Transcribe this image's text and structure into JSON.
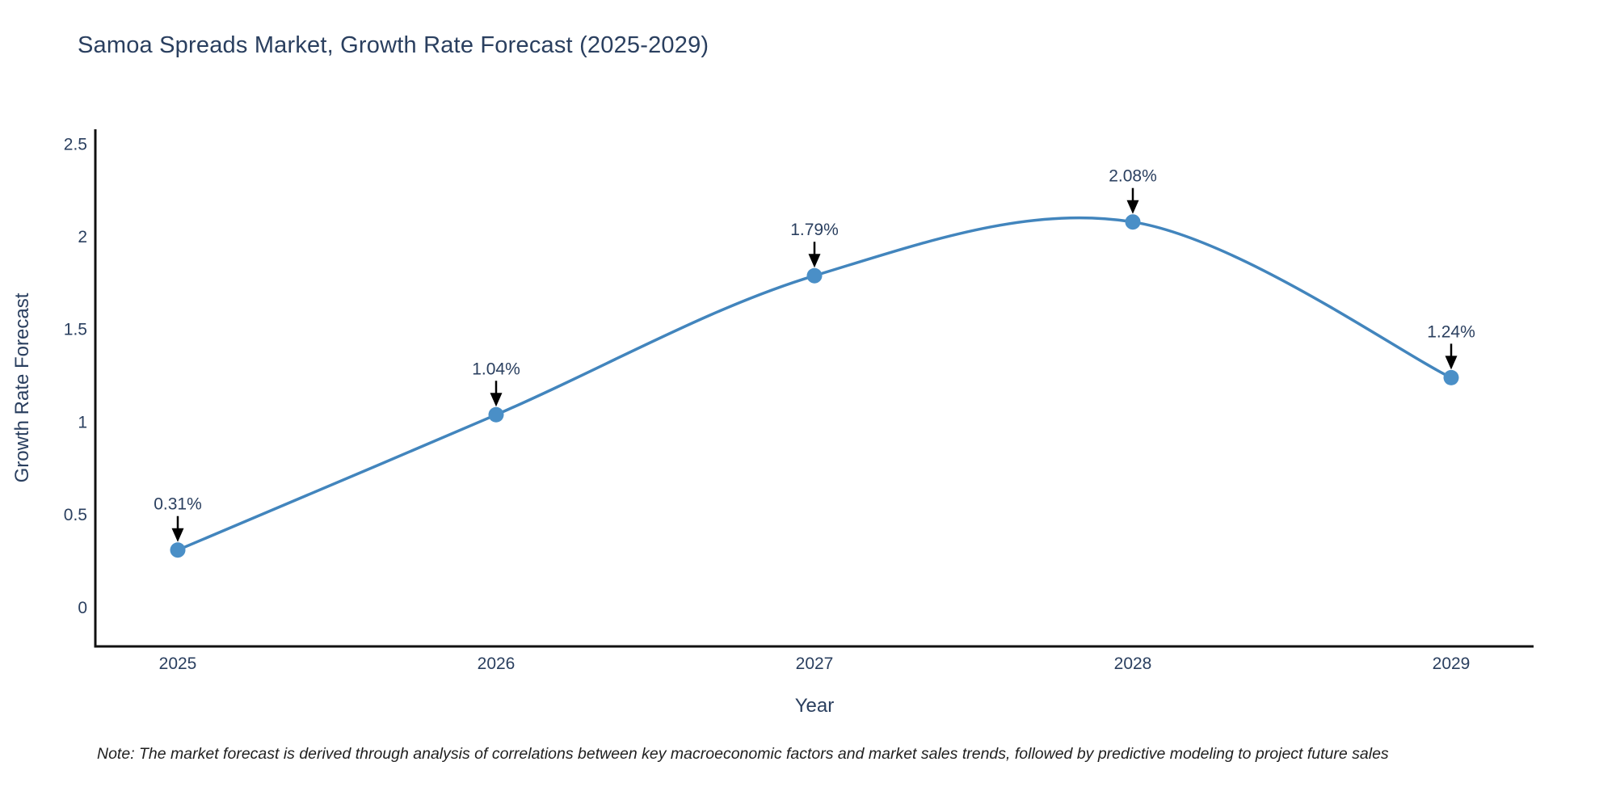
{
  "chart_data": {
    "type": "line",
    "curve": "spline",
    "title": "Samoa Spreads Market, Growth Rate Forecast (2025-2029)",
    "xlabel": "Year",
    "ylabel": "Growth Rate Forecast",
    "note": "Note: The market forecast is derived through analysis of correlations between key macroeconomic factors and market sales trends, followed by predictive modeling to project future sales",
    "categories": [
      "2025",
      "2026",
      "2027",
      "2028",
      "2029"
    ],
    "values": [
      0.31,
      1.04,
      1.79,
      2.08,
      1.24
    ],
    "point_labels": [
      "0.31%",
      "1.04%",
      "1.79%",
      "2.08%",
      "1.24%"
    ],
    "ytick_values": [
      0,
      0.5,
      1,
      1.5,
      2,
      2.5
    ],
    "ytick_labels": [
      "0",
      "0.5",
      "1",
      "1.5",
      "2",
      "2.5"
    ],
    "ylim": [
      -0.21,
      2.58
    ],
    "grid": false,
    "legend_position": "none",
    "colors": {
      "line": "#4285bd",
      "marker": "#4a8fc7",
      "text": "#2a3f5f",
      "axis": "#111111",
      "arrow": "#000000",
      "note_text": "#1f1f1f",
      "background": "#ffffff"
    }
  }
}
